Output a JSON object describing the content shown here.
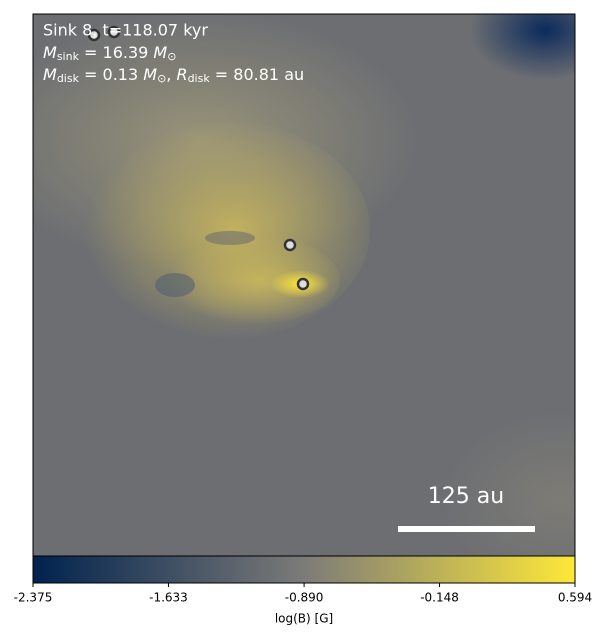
{
  "chart_data": {
    "type": "image",
    "title": "Sink 8, t=118.07 kyr",
    "sink_mass_parts": [
      "M",
      "sink",
      " = 16.39 ",
      "M",
      "⊙"
    ],
    "disk_parts": [
      "M",
      "disk",
      " = 0.13 ",
      "M",
      "⊙",
      ", ",
      "R",
      "disk",
      " = 80.81 au"
    ],
    "scale_bar_label": "125 au",
    "colorbar_label": "log(B) [G]",
    "clim": [
      -2.375,
      0.594
    ],
    "cticks": [
      -2.375,
      -1.633,
      {
        "value": -0.89,
        "label": "-0.890"
      },
      -0.148,
      0.594
    ],
    "colormap": [
      "#00224e",
      "#7c7b78",
      "#fee838"
    ]
  }
}
